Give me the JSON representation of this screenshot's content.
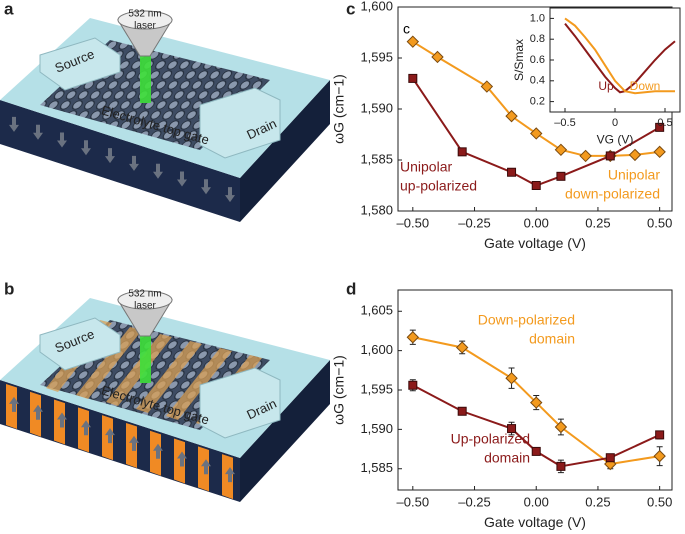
{
  "panel_labels": [
    "a",
    "b",
    "c",
    "d"
  ],
  "illustrations": [
    {
      "laser": [
        "532 nm",
        "laser"
      ],
      "source": "Source",
      "drain": "Drain",
      "gate": "Electrolyte top gate"
    },
    {
      "laser": [
        "532 nm",
        "laser"
      ],
      "source": "Source",
      "drain": "Drain",
      "gate": "Electrolyte top gate"
    }
  ],
  "chart_data": [
    {
      "type": "line",
      "xlabel": "Gate voltage (V)",
      "ylabel": "ωG (cm−1)",
      "xlim": [
        -0.56,
        0.55
      ],
      "ylim": [
        1580,
        1600
      ],
      "xticks": [
        {
          "value": -0.5,
          "label": "–0.50"
        },
        {
          "value": -0.25,
          "label": "–0.25"
        },
        {
          "value": 0,
          "label": "0.00"
        },
        {
          "value": 0.25,
          "label": "0.25"
        },
        {
          "value": 0.5,
          "label": "0.50"
        }
      ],
      "yticks": [
        {
          "value": 1580,
          "label": "1,580"
        },
        {
          "value": 1585,
          "label": "1,585"
        },
        {
          "value": 1590,
          "label": "1,590"
        },
        {
          "value": 1595,
          "label": "1,595"
        },
        {
          "value": 1600,
          "label": "1,600"
        }
      ],
      "series": [
        {
          "color": "#f39a1e",
          "marker": "diamond",
          "x": [
            -0.5,
            -0.4,
            -0.2,
            -0.1,
            0,
            0.1,
            0.2,
            0.3,
            0.4,
            0.5
          ],
          "values": [
            1596.6,
            1595.1,
            1592.2,
            1589.3,
            1587.6,
            1586.0,
            1585.4,
            1585.4,
            1585.5,
            1585.8
          ]
        },
        {
          "color": "#8b1a1a",
          "marker": "square",
          "x": [
            -0.5,
            -0.3,
            -0.1,
            0,
            0.1,
            0.3,
            0.5
          ],
          "values": [
            1593.0,
            1585.8,
            1583.8,
            1582.5,
            1583.4,
            1585.4,
            1588.2
          ]
        }
      ],
      "annotations": [
        {
          "text": [
            "c"
          ],
          "color": "#000000"
        },
        {
          "text": [
            "Unipolar",
            "up-polarized"
          ],
          "color": "#8b1a1a"
        },
        {
          "text": [
            "Unipolar",
            "down-polarized"
          ],
          "color": "#f39a1e"
        }
      ]
    },
    {
      "type": "line",
      "xlabel": "VG (V)",
      "ylabel": "S/Smax",
      "xlim": [
        -0.65,
        0.65
      ],
      "ylim": [
        0.1,
        1.1
      ],
      "xticks": [
        {
          "value": -0.5,
          "label": "–0.5"
        },
        0,
        0.5
      ],
      "yticks": [
        0.2,
        0.4,
        0.6,
        0.8,
        {
          "value": 1,
          "label": "1.0"
        }
      ],
      "series": [
        {
          "color": "#8b1a1a",
          "marker": "none",
          "x": [
            -0.5,
            -0.4,
            -0.3,
            -0.2,
            -0.1,
            0,
            0.05,
            0.1,
            0.2,
            0.3,
            0.4,
            0.5,
            0.6
          ],
          "values": [
            0.95,
            0.83,
            0.7,
            0.57,
            0.44,
            0.33,
            0.29,
            0.3,
            0.38,
            0.49,
            0.6,
            0.7,
            0.78
          ]
        },
        {
          "color": "#f39a1e",
          "marker": "none",
          "x": [
            -0.5,
            -0.4,
            -0.3,
            -0.2,
            -0.1,
            0,
            0.1,
            0.2,
            0.3,
            0.4,
            0.5,
            0.6
          ],
          "values": [
            1.0,
            0.93,
            0.82,
            0.7,
            0.55,
            0.4,
            0.3,
            0.28,
            0.29,
            0.3,
            0.3,
            0.3
          ]
        }
      ],
      "annotations": [
        {
          "text": [
            "Up"
          ],
          "color": "#8b1a1a"
        },
        {
          "text": [
            "Down"
          ],
          "color": "#f39a1e"
        }
      ]
    },
    {
      "type": "line",
      "xlabel": "Gate voltage (V)",
      "ylabel": "ωG (cm−1)",
      "xlim": [
        -0.56,
        0.55
      ],
      "ylim": [
        1582.3,
        1607.7
      ],
      "xticks": [
        {
          "value": -0.5,
          "label": "–0.50"
        },
        {
          "value": -0.25,
          "label": "–0.25"
        },
        {
          "value": 0,
          "label": "0.00"
        },
        {
          "value": 0.25,
          "label": "0.25"
        },
        {
          "value": 0.5,
          "label": "0.50"
        }
      ],
      "yticks": [
        {
          "value": 1585,
          "label": "1,585"
        },
        {
          "value": 1590,
          "label": "1,590"
        },
        {
          "value": 1595,
          "label": "1,595"
        },
        {
          "value": 1600,
          "label": "1,600"
        },
        {
          "value": 1605,
          "label": "1,605"
        }
      ],
      "series": [
        {
          "color": "#f39a1e",
          "marker": "diamond",
          "x": [
            -0.5,
            -0.3,
            -0.1,
            0,
            0.1,
            0.3,
            0.5
          ],
          "values": [
            1601.7,
            1600.4,
            1596.5,
            1593.4,
            1590.3,
            1585.6,
            1586.6
          ],
          "errors": [
            0.9,
            0.8,
            1.3,
            0.9,
            1.0,
            0.6,
            1.2
          ]
        },
        {
          "color": "#8b1a1a",
          "marker": "square",
          "x": [
            -0.5,
            -0.3,
            -0.1,
            0,
            0.1,
            0.3,
            0.5
          ],
          "values": [
            1595.6,
            1592.3,
            1590.1,
            1587.2,
            1585.3,
            1586.4,
            1589.3
          ],
          "errors": [
            0.7,
            0.4,
            0.8,
            0.3,
            0.8,
            0.4,
            0.5
          ]
        }
      ],
      "annotations": [
        {
          "text": [
            "Down-polarized",
            "domain"
          ],
          "color": "#f39a1e"
        },
        {
          "text": [
            "Up-polarized",
            "domain"
          ],
          "color": "#8b1a1a"
        }
      ]
    }
  ]
}
